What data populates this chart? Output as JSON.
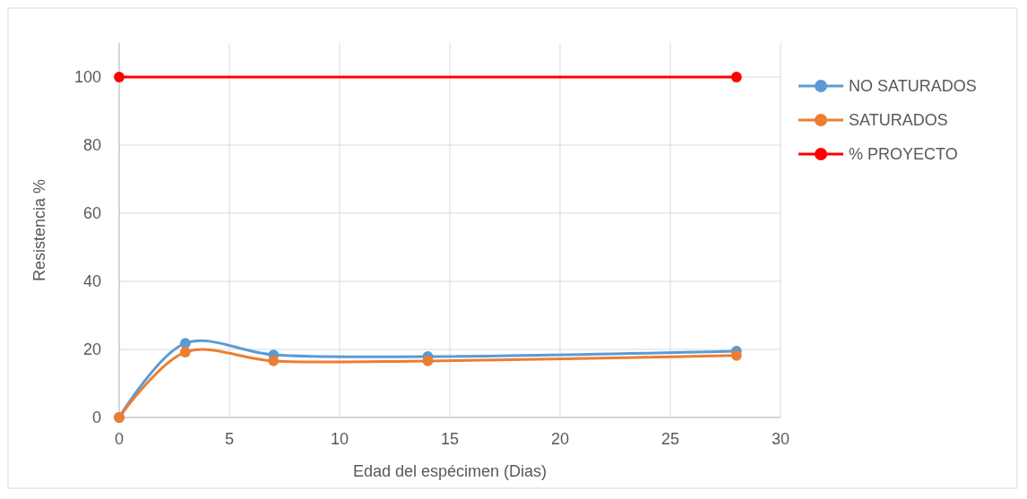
{
  "chart_data": {
    "type": "line",
    "xlabel": "Edad del espécimen (Dias)",
    "ylabel": "Resistencia %",
    "xlim": [
      0,
      30
    ],
    "xticks": [
      0,
      5,
      10,
      15,
      20,
      25,
      30
    ],
    "ylim": [
      0,
      110
    ],
    "yticks": [
      0,
      20,
      40,
      60,
      80,
      100
    ],
    "grid": true,
    "legend": "right",
    "marker": "circle",
    "series": [
      {
        "name": "NO SATURADOS",
        "color": "#5b9bd5",
        "x": [
          0,
          3,
          7,
          14,
          28
        ],
        "values": [
          0,
          21.8,
          18.4,
          17.9,
          19.5
        ]
      },
      {
        "name": "SATURADOS",
        "color": "#ed7d31",
        "x": [
          0,
          3,
          7,
          14,
          28
        ],
        "values": [
          0,
          19.2,
          16.6,
          16.6,
          18.2
        ]
      },
      {
        "name": "% PROYECTO",
        "color": "#ff0000",
        "x": [
          0,
          28
        ],
        "values": [
          100,
          100
        ]
      }
    ]
  }
}
